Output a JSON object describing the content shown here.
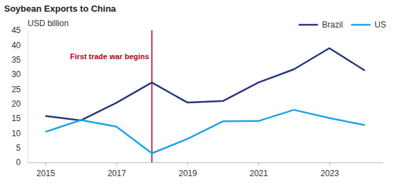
{
  "chart_data": {
    "type": "line",
    "title": "Soybean Exports to China",
    "y_label": "USD billion",
    "x": [
      2015,
      2016,
      2017,
      2018,
      2019,
      2020,
      2021,
      2022,
      2023,
      2024
    ],
    "series": [
      {
        "name": "Brazil",
        "color": "#28357a",
        "values": [
          15.8,
          14.3,
          20.3,
          27.2,
          20.4,
          20.9,
          27.2,
          31.7,
          38.9,
          31.3
        ]
      },
      {
        "name": "US",
        "color": "#1aa3e6",
        "values": [
          10.4,
          14.4,
          12.2,
          3.1,
          8.0,
          14.0,
          14.1,
          17.9,
          15.1,
          12.7
        ]
      }
    ],
    "annotations": [
      {
        "x": 2018,
        "text": "First trade war begins"
      }
    ],
    "xlim": [
      2014.5,
      2024.5
    ],
    "xticks": [
      2015,
      2017,
      2019,
      2021,
      2023
    ],
    "ylim": [
      0,
      45
    ],
    "yticks": [
      0,
      5,
      10,
      15,
      20,
      25,
      30,
      35,
      40,
      45
    ],
    "grid": false,
    "legend": "top-right"
  }
}
